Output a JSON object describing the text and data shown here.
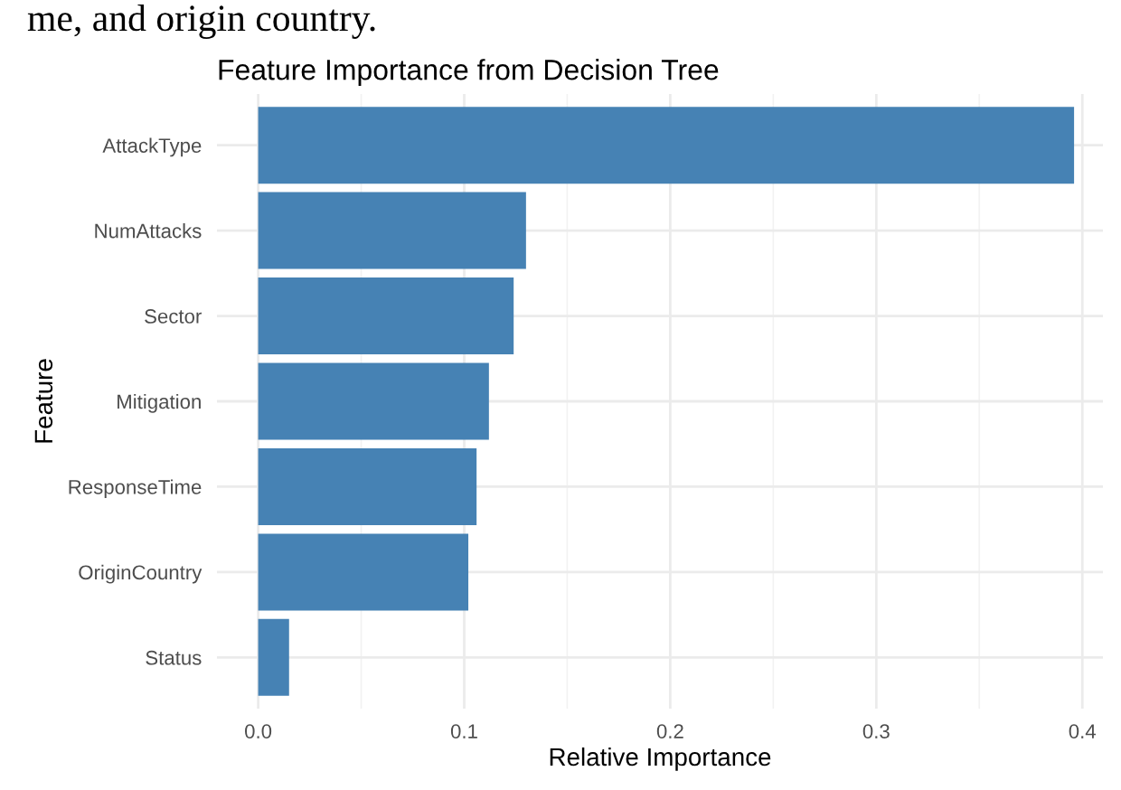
{
  "chart_data": {
    "type": "bar",
    "orientation": "horizontal",
    "title": "Feature Importance from Decision Tree",
    "xlabel": "Relative Importance",
    "ylabel": "Feature",
    "categories": [
      "AttackType",
      "NumAttacks",
      "Sector",
      "Mitigation",
      "ResponseTime",
      "OriginCountry",
      "Status"
    ],
    "values": [
      0.396,
      0.13,
      0.124,
      0.112,
      0.106,
      0.102,
      0.015
    ],
    "color": "#4682b4",
    "xlim": [
      -0.02,
      0.41
    ],
    "xticks": [
      {
        "value": 0,
        "label": "0.0"
      },
      0.1,
      0.2,
      0.3,
      0.4
    ],
    "grid": true,
    "legend": false,
    "annotations": [
      "me, and origin country."
    ]
  }
}
